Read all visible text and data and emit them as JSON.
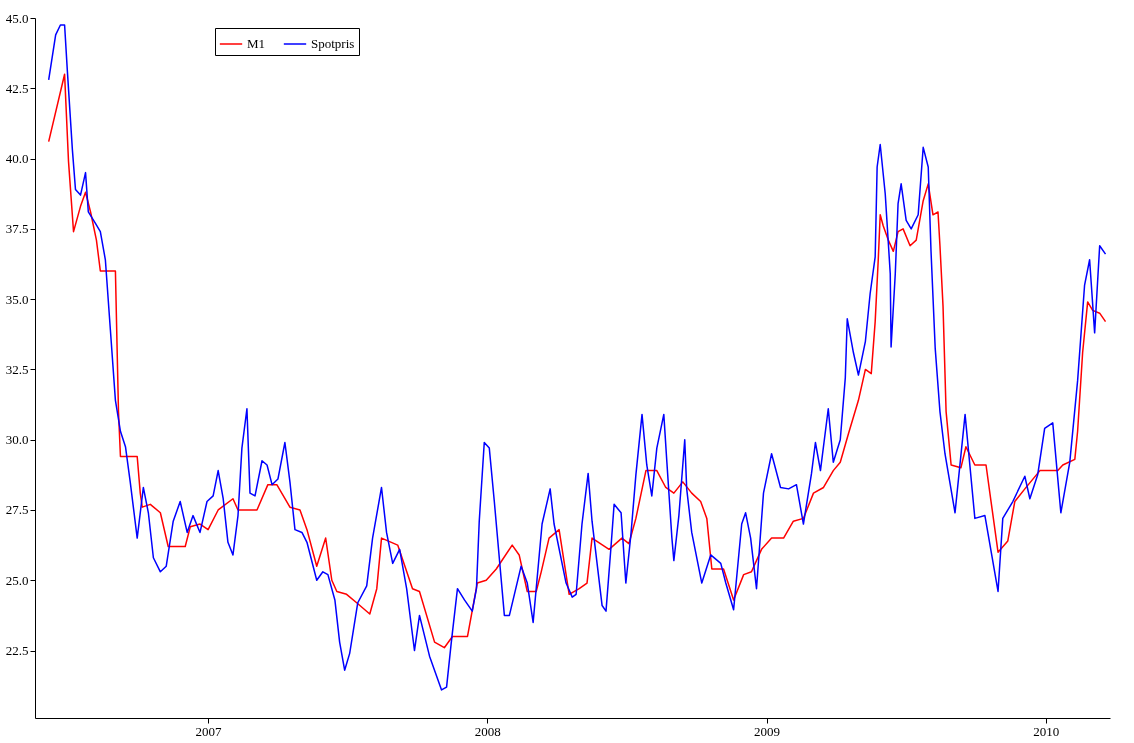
{
  "chart_data": {
    "type": "line",
    "xlim": [
      2006.38,
      2010.23
    ],
    "xticks": [
      2007,
      2008,
      2009,
      2010
    ],
    "ylim": [
      20.1,
      45
    ],
    "yticks": [
      {
        "value": 22.5,
        "label": "22.5"
      },
      {
        "value": 25,
        "label": "25.0"
      },
      {
        "value": 27.5,
        "label": "27.5"
      },
      {
        "value": 30,
        "label": "30.0"
      },
      {
        "value": 32.5,
        "label": "32.5"
      },
      {
        "value": 35,
        "label": "35.0"
      },
      {
        "value": 37.5,
        "label": "37.5"
      },
      {
        "value": 40,
        "label": "40.0"
      },
      {
        "value": 42.5,
        "label": "42.5"
      },
      {
        "value": 45,
        "label": "45.0"
      }
    ],
    "grid": false,
    "legend": "top left",
    "line_style": "solid",
    "series": [
      {
        "name": "M1",
        "color": "#ff0000",
        "x": [
          2006.429,
          2006.486,
          2006.5,
          2006.518,
          2006.543,
          2006.561,
          2006.579,
          2006.6,
          2006.614,
          2006.668,
          2006.679,
          2006.686,
          2006.746,
          2006.757,
          2006.764,
          2006.793,
          2006.829,
          2006.857,
          2006.918,
          2006.936,
          2006.971,
          2007.0,
          2007.036,
          2007.089,
          2007.107,
          2007.175,
          2007.214,
          2007.246,
          2007.293,
          2007.329,
          2007.354,
          2007.389,
          2007.421,
          2007.443,
          2007.461,
          2007.496,
          2007.532,
          2007.579,
          2007.604,
          2007.621,
          2007.679,
          2007.732,
          2007.757,
          2007.811,
          2007.846,
          2007.875,
          2007.929,
          2007.964,
          2007.996,
          2008.032,
          2008.089,
          2008.114,
          2008.143,
          2008.175,
          2008.193,
          2008.221,
          2008.257,
          2008.293,
          2008.329,
          2008.357,
          2008.375,
          2008.436,
          2008.482,
          2008.507,
          2008.532,
          2008.568,
          2008.607,
          2008.639,
          2008.668,
          2008.7,
          2008.732,
          2008.764,
          2008.786,
          2008.804,
          2008.846,
          2008.882,
          2008.918,
          2008.946,
          2008.982,
          2009.018,
          2009.061,
          2009.096,
          2009.132,
          2009.168,
          2009.204,
          2009.239,
          2009.264,
          2009.293,
          2009.329,
          2009.354,
          2009.375,
          2009.389,
          2009.4,
          2009.407,
          2009.418,
          2009.436,
          2009.454,
          2009.471,
          2009.489,
          2009.514,
          2009.536,
          2009.561,
          2009.579,
          2009.596,
          2009.614,
          2009.621,
          2009.632,
          2009.643,
          2009.661,
          2009.696,
          2009.714,
          2009.746,
          2009.786,
          2009.804,
          2009.829,
          2009.864,
          2009.889,
          2009.925,
          2009.979,
          2010.043,
          2010.061,
          2010.104,
          2010.114,
          2010.132,
          2010.15,
          2010.168,
          2010.193,
          2010.214
        ],
        "values": [
          40.6,
          43.0,
          39.9,
          37.4,
          38.3,
          38.8,
          38.1,
          37.1,
          36.0,
          36.0,
          31.0,
          29.4,
          29.4,
          28.1,
          27.6,
          27.7,
          27.4,
          26.2,
          26.2,
          26.9,
          27.0,
          26.8,
          27.5,
          27.9,
          27.5,
          27.5,
          28.4,
          28.4,
          27.6,
          27.5,
          26.8,
          25.5,
          26.5,
          25.0,
          24.6,
          24.5,
          24.2,
          23.8,
          24.7,
          26.5,
          26.25,
          24.7,
          24.6,
          22.8,
          22.6,
          23.0,
          23.0,
          24.9,
          25.0,
          25.4,
          26.25,
          25.9,
          24.6,
          24.6,
          25.3,
          26.5,
          26.8,
          24.5,
          24.7,
          24.9,
          26.5,
          26.1,
          26.5,
          26.3,
          27.2,
          28.9,
          28.9,
          28.3,
          28.1,
          28.5,
          28.1,
          27.8,
          27.2,
          25.4,
          25.4,
          24.3,
          25.2,
          25.3,
          26.1,
          26.5,
          26.5,
          27.1,
          27.2,
          28.1,
          28.3,
          28.9,
          29.2,
          30.2,
          31.4,
          32.5,
          32.35,
          34.2,
          36.4,
          38.0,
          37.6,
          37.1,
          36.7,
          37.4,
          37.5,
          36.9,
          37.1,
          38.5,
          39.1,
          38.0,
          38.1,
          36.9,
          34.75,
          31.0,
          29.1,
          29.0,
          29.75,
          29.1,
          29.1,
          27.8,
          26.0,
          26.4,
          27.8,
          28.25,
          28.9,
          28.9,
          29.1,
          29.3,
          30.3,
          33.1,
          34.9,
          34.6,
          34.5,
          34.2
        ]
      },
      {
        "name": "Spotpris",
        "color": "#0000ff",
        "x": [
          2006.429,
          2006.454,
          2006.471,
          2006.486,
          2006.496,
          2006.514,
          2006.525,
          2006.543,
          2006.561,
          2006.571,
          2006.596,
          2006.614,
          2006.632,
          2006.65,
          2006.668,
          2006.686,
          2006.704,
          2006.721,
          2006.746,
          2006.768,
          2006.786,
          2006.804,
          2006.829,
          2006.85,
          2006.875,
          2006.9,
          2006.925,
          2006.946,
          2006.971,
          2006.996,
          2007.018,
          2007.036,
          2007.054,
          2007.071,
          2007.089,
          2007.107,
          2007.121,
          2007.139,
          2007.15,
          2007.168,
          2007.193,
          2007.211,
          2007.229,
          2007.25,
          2007.275,
          2007.293,
          2007.311,
          2007.336,
          2007.354,
          2007.389,
          2007.411,
          2007.429,
          2007.454,
          2007.471,
          2007.489,
          2007.507,
          2007.536,
          2007.568,
          2007.589,
          2007.621,
          2007.639,
          2007.661,
          2007.686,
          2007.711,
          2007.739,
          2007.757,
          2007.793,
          2007.836,
          2007.854,
          2007.871,
          2007.893,
          2007.918,
          2007.946,
          2007.961,
          2007.971,
          2007.989,
          2008.007,
          2008.025,
          2008.061,
          2008.079,
          2008.121,
          2008.143,
          2008.164,
          2008.196,
          2008.225,
          2008.239,
          2008.282,
          2008.304,
          2008.318,
          2008.339,
          2008.361,
          2008.375,
          2008.411,
          2008.425,
          2008.443,
          2008.454,
          2008.479,
          2008.496,
          2008.514,
          2008.532,
          2008.554,
          2008.571,
          2008.589,
          2008.607,
          2008.632,
          2008.643,
          2008.661,
          2008.668,
          2008.686,
          2008.707,
          2008.714,
          2008.732,
          2008.768,
          2008.8,
          2008.836,
          2008.854,
          2008.882,
          2008.911,
          2008.925,
          2008.943,
          2008.964,
          2008.989,
          2009.018,
          2009.05,
          2009.079,
          2009.107,
          2009.132,
          2009.161,
          2009.175,
          2009.193,
          2009.221,
          2009.239,
          2009.264,
          2009.282,
          2009.289,
          2009.311,
          2009.329,
          2009.354,
          2009.371,
          2009.389,
          2009.396,
          2009.407,
          2009.425,
          2009.443,
          2009.446,
          2009.461,
          2009.471,
          2009.482,
          2009.5,
          2009.518,
          2009.543,
          2009.561,
          2009.579,
          2009.589,
          2009.604,
          2009.621,
          2009.639,
          2009.675,
          2009.711,
          2009.746,
          2009.782,
          2009.829,
          2009.846,
          2009.882,
          2009.925,
          2009.943,
          2009.971,
          2009.996,
          2010.025,
          2010.054,
          2010.086,
          2010.114,
          2010.139,
          2010.157,
          2010.175,
          2010.193,
          2010.214
        ],
        "values": [
          42.8,
          44.4,
          44.75,
          44.75,
          43.1,
          40.3,
          38.9,
          38.7,
          39.5,
          38.1,
          37.7,
          37.4,
          36.4,
          33.9,
          31.4,
          30.3,
          29.75,
          28.5,
          26.5,
          28.3,
          27.4,
          25.8,
          25.3,
          25.5,
          27.1,
          27.8,
          26.7,
          27.3,
          26.7,
          27.8,
          28.0,
          28.9,
          27.9,
          26.35,
          25.9,
          27.3,
          29.7,
          31.1,
          28.1,
          28.0,
          29.25,
          29.1,
          28.4,
          28.6,
          29.9,
          28.5,
          26.8,
          26.7,
          26.35,
          25.0,
          25.3,
          25.2,
          24.3,
          22.8,
          21.8,
          22.4,
          24.2,
          24.8,
          26.5,
          28.3,
          26.7,
          25.6,
          26.1,
          24.7,
          22.5,
          23.75,
          22.3,
          21.1,
          21.2,
          22.8,
          24.7,
          24.3,
          23.9,
          24.7,
          27.1,
          29.9,
          29.7,
          27.8,
          23.75,
          23.75,
          25.5,
          24.9,
          23.5,
          27.0,
          28.25,
          27.0,
          24.9,
          24.4,
          24.5,
          27.0,
          28.8,
          27.1,
          24.1,
          23.9,
          26.2,
          27.7,
          27.4,
          24.9,
          26.6,
          28.75,
          30.9,
          29.1,
          28.0,
          29.7,
          30.9,
          29.2,
          26.5,
          25.7,
          27.3,
          30.0,
          28.25,
          26.7,
          24.9,
          25.9,
          25.6,
          24.9,
          23.95,
          27.0,
          27.4,
          26.5,
          24.7,
          28.1,
          29.5,
          28.3,
          28.25,
          28.4,
          27.0,
          28.8,
          29.9,
          28.9,
          31.1,
          29.2,
          30.0,
          32.2,
          34.3,
          33.1,
          32.3,
          33.5,
          35.2,
          36.5,
          39.7,
          40.5,
          38.75,
          35.9,
          33.3,
          35.9,
          38.4,
          39.1,
          37.8,
          37.5,
          38.0,
          40.4,
          39.7,
          36.7,
          33.25,
          31.0,
          29.5,
          27.4,
          30.9,
          27.2,
          27.3,
          24.6,
          27.2,
          27.8,
          28.7,
          27.9,
          28.75,
          30.4,
          30.6,
          27.4,
          29.2,
          32.1,
          35.5,
          36.4,
          33.8,
          36.9,
          36.6
        ]
      }
    ]
  }
}
